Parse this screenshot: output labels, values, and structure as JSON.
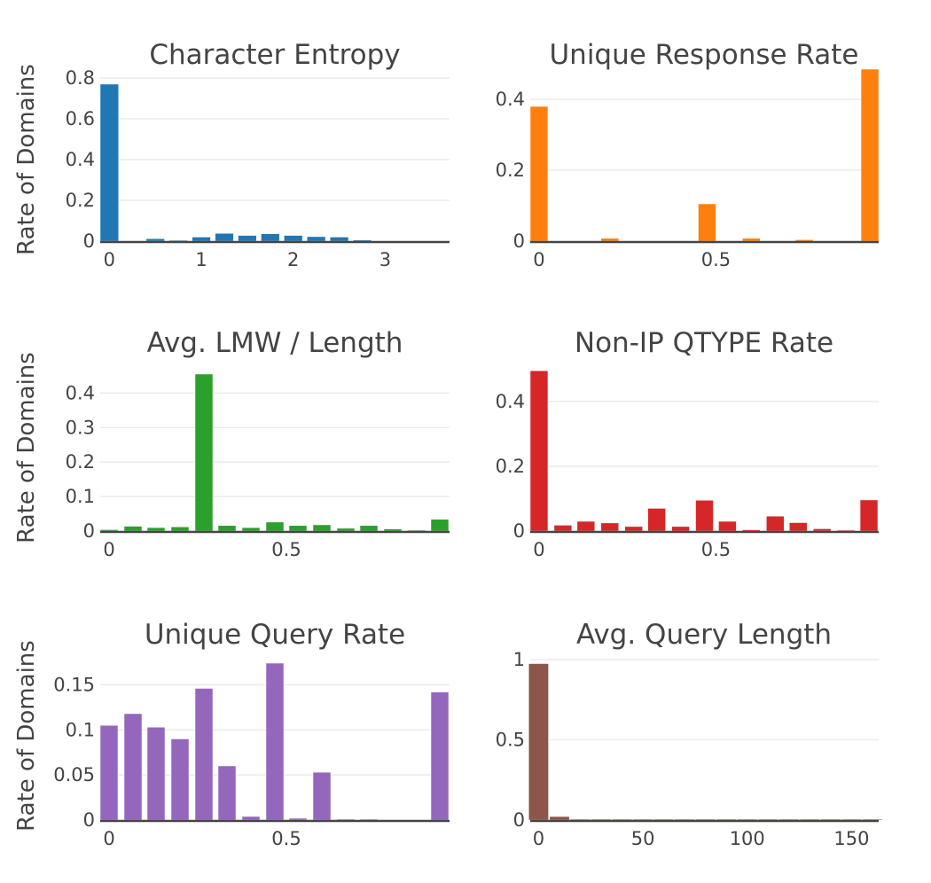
{
  "chart_data": [
    {
      "type": "bar",
      "title": "Character Entropy",
      "ylabel": "Rate of Domains",
      "xlabel": "",
      "color": "#1f77b4",
      "x_range": [
        -0.1,
        3.7
      ],
      "ylim": [
        0,
        0.8
      ],
      "x_ticks": [
        {
          "v": 0,
          "label": "0"
        },
        {
          "v": 1,
          "label": "1"
        },
        {
          "v": 2,
          "label": "2"
        },
        {
          "v": 3,
          "label": "3"
        }
      ],
      "y_ticks": [
        {
          "v": 0,
          "label": "0"
        },
        {
          "v": 0.2,
          "label": "0.2"
        },
        {
          "v": 0.4,
          "label": "0.4"
        },
        {
          "v": 0.6,
          "label": "0.6"
        },
        {
          "v": 0.8,
          "label": "0.8"
        }
      ],
      "bin_width": 0.2,
      "x": [
        0.0,
        0.5,
        0.75,
        1.0,
        1.25,
        1.5,
        1.75,
        2.0,
        2.25,
        2.5,
        2.75
      ],
      "values": [
        0.77,
        0.012,
        0.004,
        0.02,
        0.038,
        0.028,
        0.036,
        0.028,
        0.022,
        0.02,
        0.006
      ]
    },
    {
      "type": "bar",
      "title": "Unique Response Rate",
      "ylabel": "",
      "xlabel": "",
      "color": "#ff7f0e",
      "x_range": [
        -0.025,
        0.96
      ],
      "ylim": [
        0,
        0.48
      ],
      "x_ticks": [
        {
          "v": 0,
          "label": "0"
        },
        {
          "v": 0.5,
          "label": "0.5"
        }
      ],
      "y_ticks": [
        {
          "v": 0,
          "label": "0"
        },
        {
          "v": 0.2,
          "label": "0.2"
        },
        {
          "v": 0.4,
          "label": "0.4"
        }
      ],
      "bin_width": 0.05,
      "x": [
        0.0,
        0.2,
        0.475,
        0.6,
        0.75,
        0.935
      ],
      "values": [
        0.38,
        0.008,
        0.105,
        0.008,
        0.004,
        0.485
      ]
    },
    {
      "type": "bar",
      "title": "Avg. LMW / Length",
      "ylabel": "Rate of Domains",
      "xlabel": "",
      "color": "#2ca02c",
      "x_range": [
        -0.025,
        0.96
      ],
      "ylim": [
        0,
        0.46
      ],
      "x_ticks": [
        {
          "v": 0,
          "label": "0"
        },
        {
          "v": 0.5,
          "label": "0.5"
        }
      ],
      "y_ticks": [
        {
          "v": 0,
          "label": "0"
        },
        {
          "v": 0.1,
          "label": "0.1"
        },
        {
          "v": 0.2,
          "label": "0.2"
        },
        {
          "v": 0.3,
          "label": "0.3"
        },
        {
          "v": 0.4,
          "label": "0.4"
        }
      ],
      "bin_width": 0.05,
      "x": [
        0.0,
        0.0675,
        0.1325,
        0.2,
        0.2675,
        0.3325,
        0.4,
        0.4675,
        0.5325,
        0.6,
        0.6675,
        0.7325,
        0.8,
        0.8675,
        0.9325
      ],
      "values": [
        0.004,
        0.014,
        0.01,
        0.012,
        0.455,
        0.016,
        0.01,
        0.026,
        0.016,
        0.018,
        0.008,
        0.016,
        0.006,
        0.002,
        0.034
      ]
    },
    {
      "type": "bar",
      "title": "Non-IP QTYPE Rate",
      "ylabel": "",
      "xlabel": "",
      "color": "#d62728",
      "x_range": [
        -0.025,
        0.96
      ],
      "ylim": [
        0,
        0.49
      ],
      "x_ticks": [
        {
          "v": 0,
          "label": "0"
        },
        {
          "v": 0.5,
          "label": "0.5"
        }
      ],
      "y_ticks": [
        {
          "v": 0,
          "label": "0"
        },
        {
          "v": 0.2,
          "label": "0.2"
        },
        {
          "v": 0.4,
          "label": "0.4"
        }
      ],
      "bin_width": 0.05,
      "x": [
        0.0,
        0.0675,
        0.1325,
        0.2,
        0.2675,
        0.3325,
        0.4,
        0.4675,
        0.5325,
        0.6,
        0.6675,
        0.7325,
        0.8,
        0.8675,
        0.9325
      ],
      "values": [
        0.495,
        0.018,
        0.03,
        0.025,
        0.014,
        0.07,
        0.014,
        0.095,
        0.03,
        0.004,
        0.046,
        0.026,
        0.007,
        0.002,
        0.096
      ]
    },
    {
      "type": "bar",
      "title": "Unique Query Rate",
      "ylabel": "Rate of Domains",
      "xlabel": "",
      "color": "#9467bd",
      "x_range": [
        -0.025,
        0.96
      ],
      "ylim": [
        0,
        0.175
      ],
      "x_ticks": [
        {
          "v": 0,
          "label": "0"
        },
        {
          "v": 0.5,
          "label": "0.5"
        }
      ],
      "y_ticks": [
        {
          "v": 0,
          "label": "0"
        },
        {
          "v": 0.05,
          "label": "0.05"
        },
        {
          "v": 0.1,
          "label": "0.1"
        },
        {
          "v": 0.15,
          "label": "0.15"
        }
      ],
      "bin_width": 0.05,
      "x": [
        0.0,
        0.0675,
        0.1325,
        0.2,
        0.2675,
        0.3325,
        0.4,
        0.4675,
        0.5325,
        0.6,
        0.6675,
        0.7325,
        0.8,
        0.8675,
        0.9325
      ],
      "values": [
        0.105,
        0.118,
        0.103,
        0.09,
        0.146,
        0.06,
        0.004,
        0.174,
        0.002,
        0.053,
        0.001,
        0.001,
        0.0,
        0.0,
        0.142
      ]
    },
    {
      "type": "bar",
      "title": "Avg. Query Length",
      "ylabel": "",
      "xlabel": "",
      "color": "#8c564b",
      "x_range": [
        -4,
        163
      ],
      "ylim": [
        0,
        1
      ],
      "x_ticks": [
        {
          "v": 0,
          "label": "0"
        },
        {
          "v": 50,
          "label": "50"
        },
        {
          "v": 100,
          "label": "100"
        },
        {
          "v": 150,
          "label": "150"
        }
      ],
      "y_ticks": [
        {
          "v": 0,
          "label": "0"
        },
        {
          "v": 0.5,
          "label": "0.5"
        },
        {
          "v": 1,
          "label": "1"
        }
      ],
      "bin_width": 9.5,
      "x": [
        0,
        10,
        20,
        30,
        40,
        50,
        60,
        70,
        80,
        90,
        100,
        110,
        120,
        130,
        140,
        150,
        160
      ],
      "values": [
        0.975,
        0.022,
        0.004,
        0.002,
        0.001,
        0.001,
        0.001,
        0.001,
        0.001,
        0.001,
        0.001,
        0.001,
        0.001,
        0.001,
        0.001,
        0.001,
        0.001
      ]
    }
  ]
}
